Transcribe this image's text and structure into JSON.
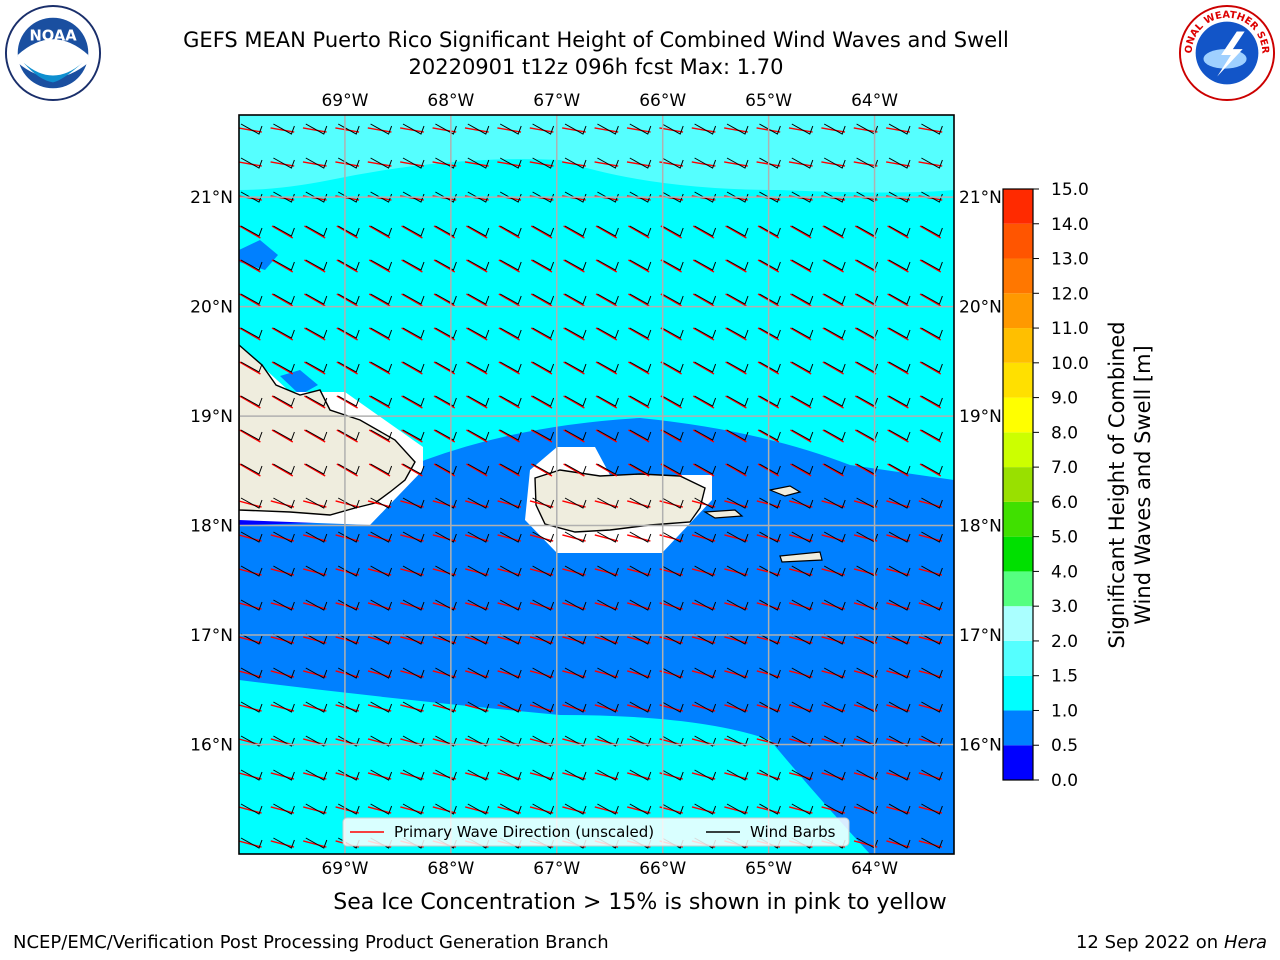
{
  "header": {
    "title_line1": "GEFS MEAN Puerto Rico Significant Height of Combined Wind Waves and Swell",
    "title_line2": "20220901 t12z 096h fcst   Max: 1.70"
  },
  "logos": {
    "left": {
      "icon": "noaa-logo",
      "text": "NOAA"
    },
    "right": {
      "icon": "nws-logo",
      "text": "NATIONAL WEATHER SERVICE"
    }
  },
  "map": {
    "lon_ticks": [
      "69°W",
      "68°W",
      "67°W",
      "66°W",
      "65°W",
      "64°W"
    ],
    "lon_values": [
      -69,
      -68,
      -67,
      -66,
      -65,
      -64
    ],
    "lat_ticks": [
      "21°N",
      "20°N",
      "19°N",
      "18°N",
      "17°N",
      "16°N"
    ],
    "lat_values": [
      21,
      20,
      19,
      18,
      17,
      16
    ],
    "extent": {
      "lon": [
        -70.0,
        -63.25
      ],
      "lat": [
        15.0,
        21.75
      ]
    },
    "legend": {
      "primary_wave": "Primary Wave Direction (unscaled)",
      "wind_barbs": "Wind Barbs"
    },
    "colors": {
      "ocean_light": "#00ffff",
      "ocean_pale": "#55ffff",
      "ocean_mid": "#0080ff",
      "ocean_dark": "#0000ff",
      "land": "#efedde",
      "wave_arrow": "#ff0000",
      "barb": "#000000"
    }
  },
  "colorbar": {
    "label_line1": "Significant Height of Combined",
    "label_line2": "Wind Waves and Swell [m]",
    "ticks": [
      "0.0",
      "0.5",
      "1.0",
      "1.5",
      "2.0",
      "3.0",
      "4.0",
      "5.0",
      "6.0",
      "7.0",
      "8.0",
      "9.0",
      "10.0",
      "11.0",
      "12.0",
      "13.0",
      "14.0",
      "15.0"
    ],
    "colors": [
      "#0000ff",
      "#0080ff",
      "#00ffff",
      "#55ffff",
      "#aaffff",
      "#55ff80",
      "#00e000",
      "#40e000",
      "#99e000",
      "#ccff00",
      "#ffff00",
      "#ffe000",
      "#ffbf00",
      "#ff9900",
      "#ff7700",
      "#ff5500",
      "#ff2a00",
      "#ff0000"
    ]
  },
  "chart_data": {
    "type": "heatmap",
    "title": "GEFS MEAN Puerto Rico Significant Height of Combined Wind Waves and Swell",
    "subtitle": "20220901 t12z 096h fcst   Max: 1.70",
    "max_value": 1.7,
    "units": "m",
    "levels": [
      0.0,
      0.5,
      1.0,
      1.5,
      2.0,
      3.0,
      4.0,
      5.0,
      6.0,
      7.0,
      8.0,
      9.0,
      10.0,
      11.0,
      12.0,
      13.0,
      14.0,
      15.0
    ]
  },
  "footer": {
    "note": "Sea Ice Concentration > 15% is shown in pink to yellow",
    "credit": "NCEP/EMC/Verification Post Processing Product Generation Branch",
    "date": "12 Sep 2022 on",
    "machine": "Hera"
  }
}
